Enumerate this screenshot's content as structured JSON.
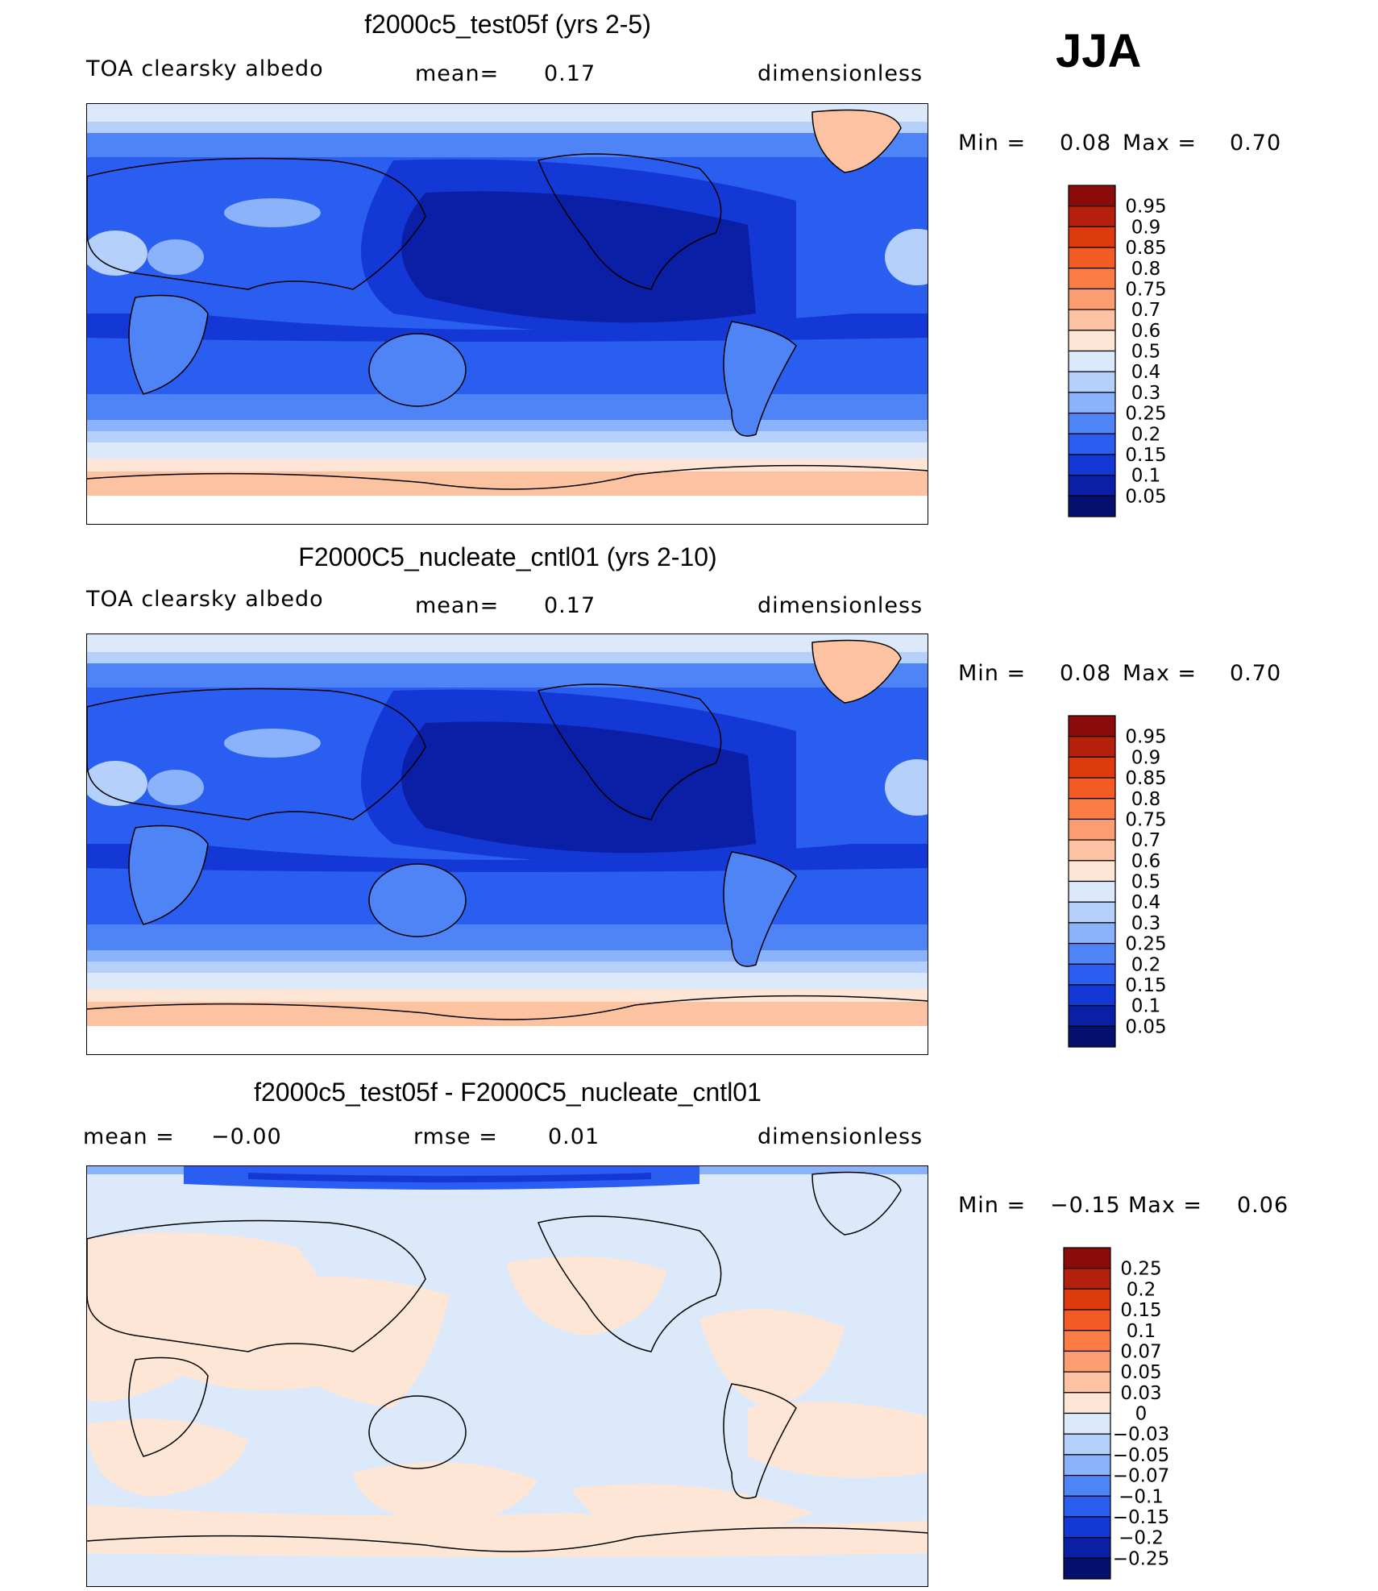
{
  "season": "JJA",
  "panels": [
    {
      "id": "test",
      "title": "f2000c5_test05f (yrs 2-5)",
      "left_label": "TOA clearsky albedo",
      "mid_label": "mean=",
      "mid_value": "0.17",
      "right_label": "dimensionless",
      "min_label": "Min =",
      "min_value": "0.08",
      "max_label": "Max =",
      "max_value": "0.70",
      "palette": "abs",
      "colorbar_ticks": [
        "0.95",
        "0.9",
        "0.85",
        "0.8",
        "0.75",
        "0.7",
        "0.6",
        "0.5",
        "0.4",
        "0.3",
        "0.25",
        "0.2",
        "0.15",
        "0.1",
        "0.05"
      ]
    },
    {
      "id": "cntl",
      "title": "F2000C5_nucleate_cntl01 (yrs 2-10)",
      "left_label": "TOA clearsky albedo",
      "mid_label": "mean=",
      "mid_value": "0.17",
      "right_label": "dimensionless",
      "min_label": "Min =",
      "min_value": "0.08",
      "max_label": "Max =",
      "max_value": "0.70",
      "palette": "abs",
      "colorbar_ticks": [
        "0.95",
        "0.9",
        "0.85",
        "0.8",
        "0.75",
        "0.7",
        "0.6",
        "0.5",
        "0.4",
        "0.3",
        "0.25",
        "0.2",
        "0.15",
        "0.1",
        "0.05"
      ]
    },
    {
      "id": "diff",
      "title": "f2000c5_test05f - F2000C5_nucleate_cntl01",
      "left_label": "mean =",
      "left_value": "−0.00",
      "mid_label": "rmse =",
      "mid_value": "0.01",
      "right_label": "dimensionless",
      "min_label": "Min =",
      "min_value": "−0.15",
      "max_label": "Max =",
      "max_value": "0.06",
      "palette": "diff",
      "colorbar_ticks": [
        "0.25",
        "0.2",
        "0.15",
        "0.1",
        "0.07",
        "0.05",
        "0.03",
        "0",
        "−0.03",
        "−0.05",
        "−0.07",
        "−0.1",
        "−0.15",
        "−0.2",
        "−0.25"
      ]
    }
  ],
  "palettes": {
    "abs": [
      "#8b0a0a",
      "#b5200c",
      "#dd3a0e",
      "#f35b24",
      "#fb7c45",
      "#fb9d70",
      "#fcc2a2",
      "#fde6d6",
      "#dce9fb",
      "#b5d0fb",
      "#8bb3fb",
      "#4e84f5",
      "#2a5ef0",
      "#1338d6",
      "#0a1fa6",
      "#05116e"
    ],
    "diff": [
      "#8b0a0a",
      "#b5200c",
      "#dd3a0e",
      "#f35b24",
      "#fb7c45",
      "#fb9d70",
      "#fcc2a2",
      "#fde6d6",
      "#dce9fb",
      "#b5d0fb",
      "#8bb3fb",
      "#4e84f5",
      "#2a5ef0",
      "#1338d6",
      "#0a1fa6",
      "#05116e"
    ]
  }
}
